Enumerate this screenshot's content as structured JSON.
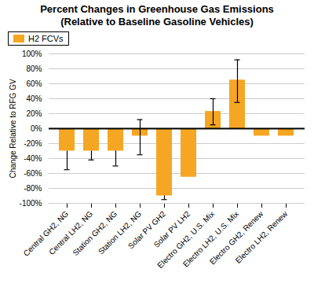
{
  "chart_data": {
    "type": "bar",
    "title": "Percent Changes in Greenhouse Gas Emissions\n(Relative to Baseline Gasoline Vehicles)",
    "ylabel": "Change Relative to RFG GV",
    "categories": [
      "Central GH2, NG",
      "Central LH2, NG",
      "Station GH2, NG",
      "Station LH2, NG",
      "Solar PV GH2",
      "Solar PV LH2",
      "Electro GH2, U.S. Mix",
      "Electro LH2, U.S. Mix",
      "Electro GH2, Renew",
      "Electro LH2, Renew"
    ],
    "series": [
      {
        "name": "H2 FCVs",
        "color": "#F5A623",
        "values": [
          -30,
          -30,
          -30,
          -10,
          -90,
          -65,
          23,
          65,
          -10,
          -10
        ],
        "yerr_neg": [
          25,
          12,
          20,
          25,
          5,
          0,
          18,
          30,
          0,
          0
        ],
        "yerr_pos": [
          0,
          0,
          0,
          22,
          0,
          0,
          17,
          27,
          0,
          0
        ]
      }
    ],
    "ylim": [
      -100,
      100
    ],
    "yticks": [
      {
        "value": -100,
        "label": "-100%"
      },
      {
        "value": -80,
        "label": "-80%"
      },
      {
        "value": -60,
        "label": "-60%"
      },
      {
        "value": -40,
        "label": "-40%"
      },
      {
        "value": -20,
        "label": "-20%"
      },
      {
        "value": 0,
        "label": "0%"
      },
      {
        "value": 20,
        "label": "20%"
      },
      {
        "value": 40,
        "label": "40%"
      },
      {
        "value": 60,
        "label": "60%"
      },
      {
        "value": 80,
        "label": "80%"
      },
      {
        "value": 100,
        "label": "100%"
      }
    ],
    "grid": true,
    "legend": "upper left"
  }
}
